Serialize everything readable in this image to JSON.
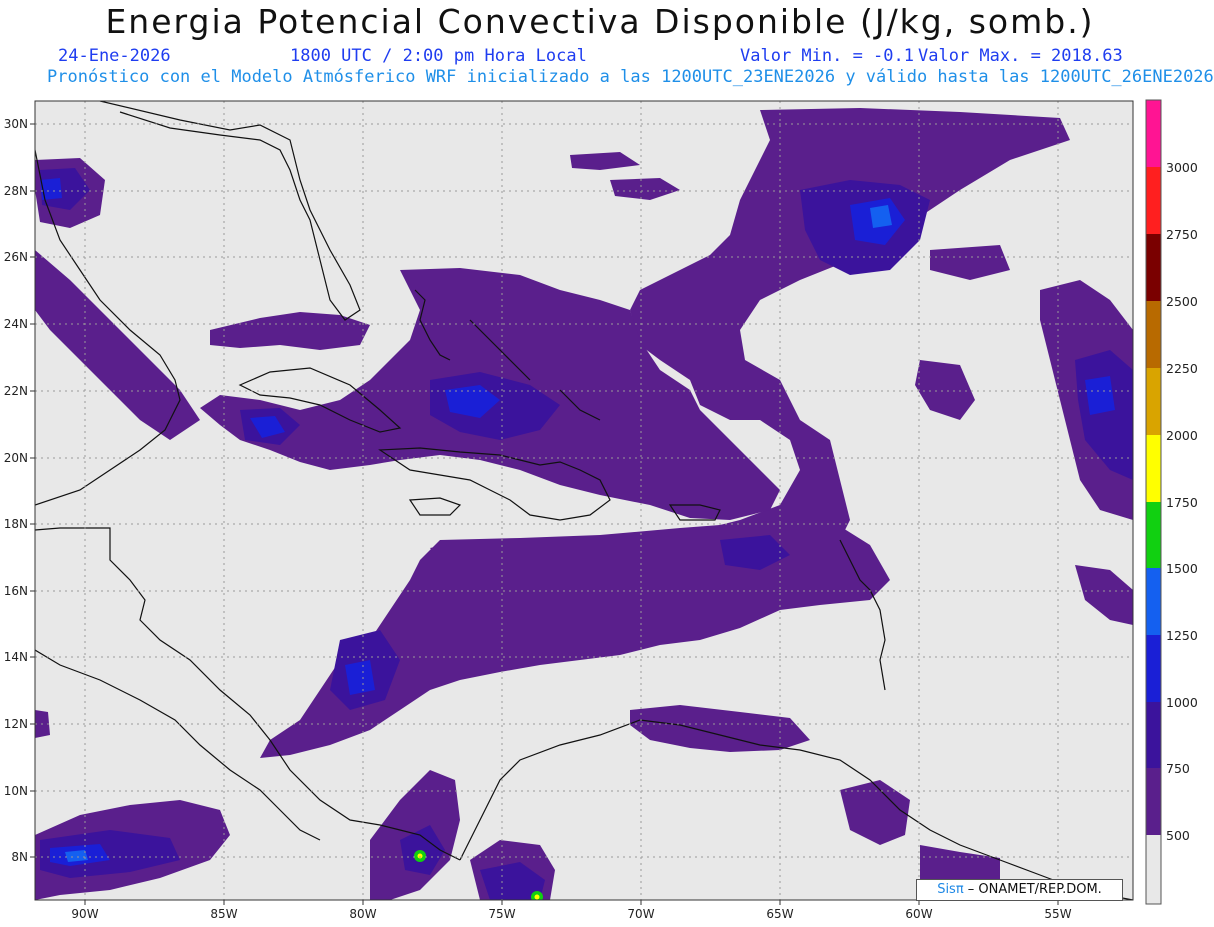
{
  "header": {
    "title": "Energia Potencial Convectiva Disponible (J/kg, somb.)",
    "date": "24-Ene-2026",
    "time": "1800 UTC / 2:00 pm Hora Local",
    "min_label": "Valor Min. = -0.1",
    "max_label": "Valor Max. = 2018.63",
    "info": "Pronóstico con el Modelo Atmósferico WRF inicializado a las 1200UTC_23ENE2026 y válido hasta las  1200UTC_26ENE2026"
  },
  "map": {
    "lon_range": [
      -92.5,
      -52.5
    ],
    "lat_range": [
      6.7,
      30.6
    ],
    "lon_ticks": [
      "90W",
      "85W",
      "80W",
      "75W",
      "70W",
      "65W",
      "60W",
      "55W"
    ],
    "lat_ticks": [
      "30N",
      "28N",
      "26N",
      "24N",
      "22N",
      "20N",
      "18N",
      "16N",
      "14N",
      "12N",
      "10N",
      "8N"
    ],
    "background_color": "#e8e8e8",
    "grid": "dotted"
  },
  "colorbar": {
    "labels": [
      "500",
      "750",
      "1000",
      "1250",
      "1500",
      "1750",
      "2000",
      "2250",
      "2500",
      "2750",
      "3000"
    ],
    "colors": [
      "#5a1f8c",
      "#3b139c",
      "#1a1fd6",
      "#1460f0",
      "#11d011",
      "#ffff00",
      "#d9a400",
      "#b86a00",
      "#7a0000",
      "#ff1f1f",
      "#ff1493"
    ]
  },
  "credit": {
    "logo": "Sisπ",
    "text": " – ONAMET/REP.DOM."
  }
}
